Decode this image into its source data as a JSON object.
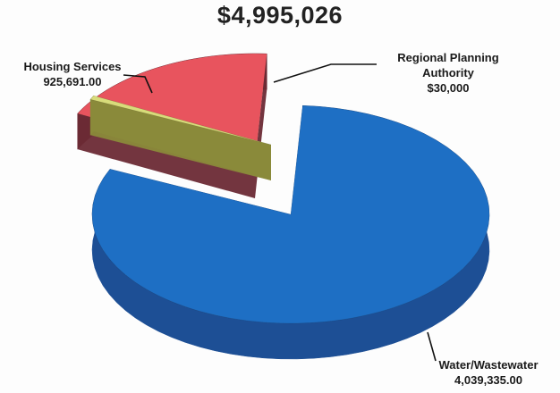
{
  "chart_data": {
    "type": "pie",
    "style": "3d-exploded",
    "title": "$4,995,026",
    "slices": [
      {
        "label": "Water/Wastewater",
        "value_text": "4,039,335.00",
        "value": 4039335,
        "color": "#1e6fc4"
      },
      {
        "label": "Regional Planning Authority",
        "value_text": "$30,000",
        "value": 30000,
        "color": "#d8dc7a"
      },
      {
        "label": "Housing Services",
        "value_text": "925,691.00",
        "value": 925691,
        "color": "#e8545e"
      }
    ]
  }
}
